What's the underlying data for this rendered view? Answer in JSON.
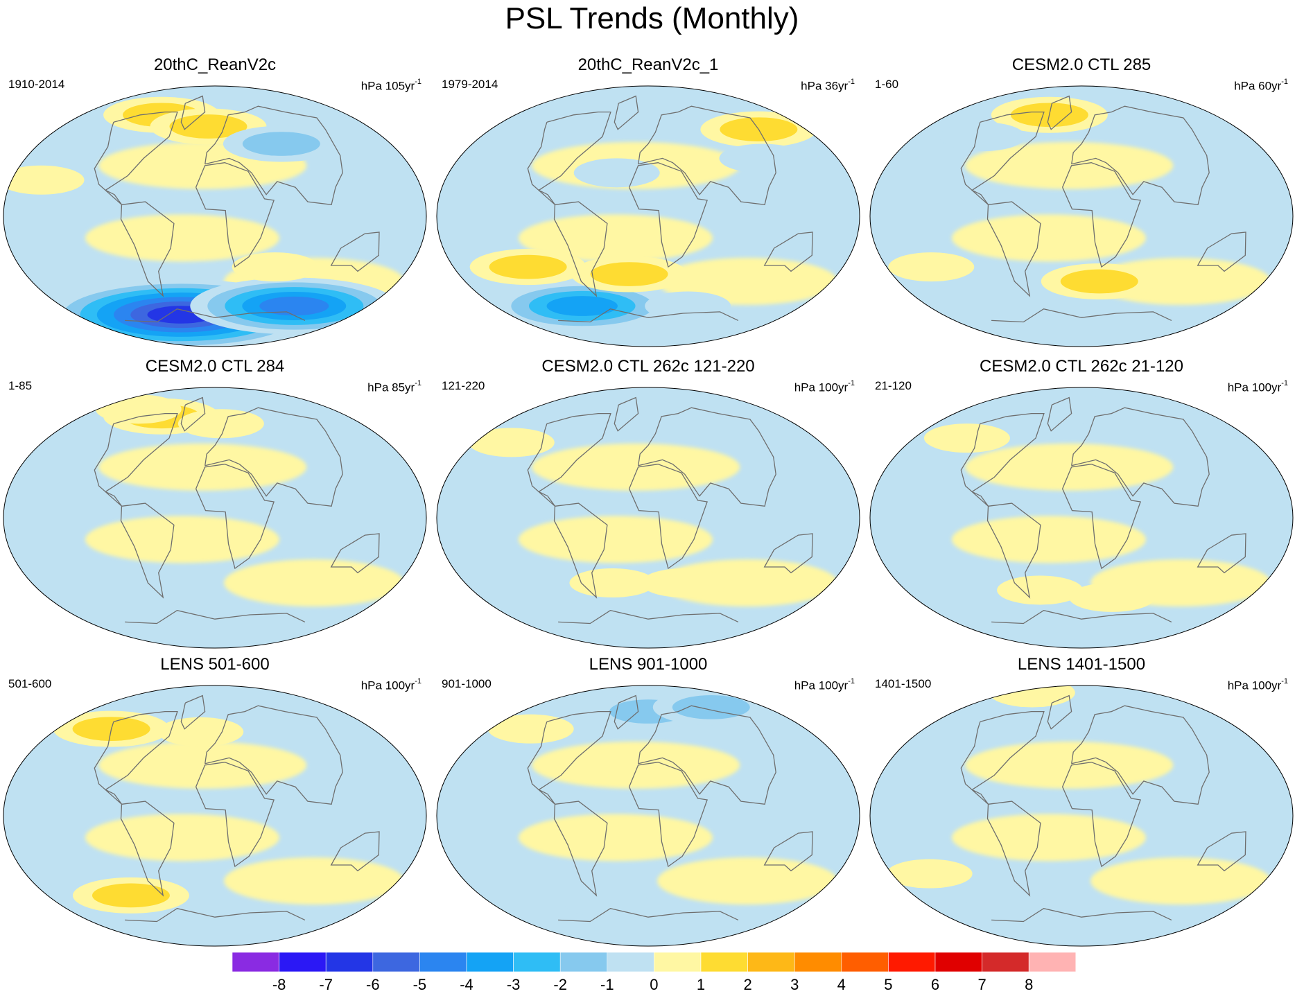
{
  "title": "PSL Trends (Monthly)",
  "chart_data": {
    "type": "heatmap",
    "title": "PSL Trends (Monthly)",
    "projection": "Robinson",
    "panels": [
      {
        "title": "20thC_ReanV2c",
        "period": "1910-2014",
        "units": "hPa 105yr",
        "units_exp": "-1",
        "anomalies": [
          {
            "lon": -60,
            "lat": -68,
            "value": -7
          },
          {
            "lon": 120,
            "lat": -62,
            "value": -5
          },
          {
            "lon": -100,
            "lat": 70,
            "value": 2
          },
          {
            "lon": -10,
            "lat": 62,
            "value": 2
          },
          {
            "lon": 80,
            "lat": 50,
            "value": -2
          },
          {
            "lon": 60,
            "lat": -35,
            "value": 1
          },
          {
            "lon": -160,
            "lat": 25,
            "value": 1
          }
        ]
      },
      {
        "title": "20thC_ReanV2c_1",
        "period": "1979-2014",
        "units": "hPa 36yr",
        "units_exp": "-1",
        "anomalies": [
          {
            "lon": -100,
            "lat": -62,
            "value": -4
          },
          {
            "lon": 60,
            "lat": -62,
            "value": -1
          },
          {
            "lon": 160,
            "lat": 60,
            "value": 2
          },
          {
            "lon": -20,
            "lat": -40,
            "value": 2
          },
          {
            "lon": -120,
            "lat": -35,
            "value": 2
          },
          {
            "lon": 120,
            "lat": 40,
            "value": -1
          },
          {
            "lon": -30,
            "lat": 30,
            "value": -1
          }
        ]
      },
      {
        "title": "CESM2.0 CTL 285",
        "period": "1-60",
        "units": "hPa 60yr",
        "units_exp": "-1",
        "anomalies": [
          {
            "lon": -60,
            "lat": 70,
            "value": 2
          },
          {
            "lon": 20,
            "lat": -45,
            "value": 2
          },
          {
            "lon": -150,
            "lat": -35,
            "value": 1
          },
          {
            "lon": -130,
            "lat": 55,
            "value": -1
          }
        ]
      },
      {
        "title": "CESM2.0 CTL 284",
        "period": "1-85",
        "units": "hPa 85yr",
        "units_exp": "-1",
        "anomalies": [
          {
            "lon": -100,
            "lat": 70,
            "value": 2
          },
          {
            "lon": 10,
            "lat": 65,
            "value": 1
          },
          {
            "lon": -170,
            "lat": 75,
            "value": 1
          },
          {
            "lon": 120,
            "lat": -45,
            "value": 1
          }
        ]
      },
      {
        "title": "CESM2.0 CTL 262c 121-220",
        "period": "121-220",
        "units": "hPa 100yr",
        "units_exp": "-1",
        "anomalies": [
          {
            "lon": -100,
            "lat": 75,
            "value": -1
          },
          {
            "lon": -170,
            "lat": 52,
            "value": 1
          },
          {
            "lon": -40,
            "lat": -45,
            "value": 1
          },
          {
            "lon": 40,
            "lat": -45,
            "value": 1
          }
        ]
      },
      {
        "title": "CESM2.0 CTL 262c 21-120",
        "period": "21-120",
        "units": "hPa 100yr",
        "units_exp": "-1",
        "anomalies": [
          {
            "lon": -150,
            "lat": 55,
            "value": 1
          },
          {
            "lon": -50,
            "lat": -50,
            "value": 1
          },
          {
            "lon": 40,
            "lat": -55,
            "value": 1
          },
          {
            "lon": -20,
            "lat": 75,
            "value": -1
          }
        ]
      },
      {
        "title": "LENS 501-600",
        "period": "501-600",
        "units": "hPa 100yr",
        "units_exp": "-1",
        "anomalies": [
          {
            "lon": -150,
            "lat": 60,
            "value": 2
          },
          {
            "lon": -110,
            "lat": -55,
            "value": 2
          },
          {
            "lon": -20,
            "lat": 58,
            "value": 1
          }
        ]
      },
      {
        "title": "LENS 901-1000",
        "period": "901-1000",
        "units": "hPa 100yr",
        "units_exp": "-1",
        "anomalies": [
          {
            "lon": 0,
            "lat": 72,
            "value": -2
          },
          {
            "lon": 140,
            "lat": 75,
            "value": -2
          },
          {
            "lon": -170,
            "lat": 60,
            "value": 1
          },
          {
            "lon": -60,
            "lat": -60,
            "value": -1
          }
        ]
      },
      {
        "title": "LENS 1401-1500",
        "period": "1401-1500",
        "units": "hPa 100yr",
        "units_exp": "-1",
        "anomalies": [
          {
            "lon": -120,
            "lat": 85,
            "value": 1
          },
          {
            "lon": -110,
            "lat": -62,
            "value": -1
          },
          {
            "lon": -160,
            "lat": -40,
            "value": 1
          }
        ]
      }
    ],
    "colorbar": {
      "labels": [
        "-8",
        "-7",
        "-6",
        "-5",
        "-4",
        "-3",
        "-2",
        "-1",
        "0",
        "1",
        "2",
        "3",
        "4",
        "5",
        "6",
        "7",
        "8"
      ],
      "colors": [
        "#8a2be2",
        "#2b18f5",
        "#2336e6",
        "#3d67e0",
        "#2b85f0",
        "#14a3f5",
        "#2fbdf5",
        "#86c9ee",
        "#bfe1f2",
        "#fff7a3",
        "#fedc32",
        "#feb817",
        "#ff8c00",
        "#ff5e00",
        "#ff1a00",
        "#e00000",
        "#d42a2a",
        "#ffb3b3"
      ]
    }
  }
}
